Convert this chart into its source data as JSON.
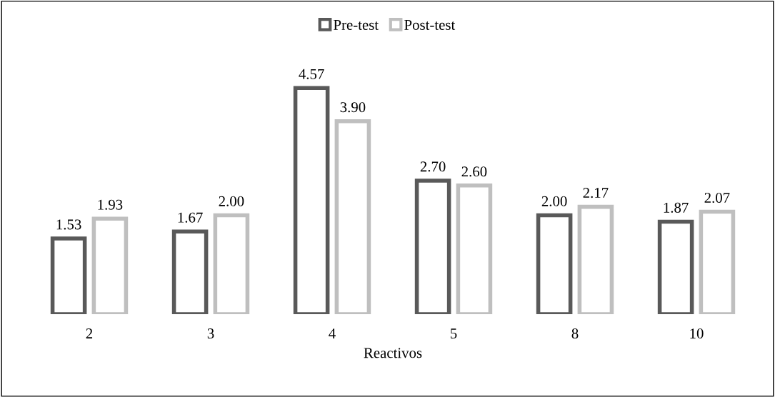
{
  "chart_data": {
    "type": "bar",
    "xlabel": "Reactivos",
    "categories": [
      "2",
      "3",
      "4",
      "5",
      "8",
      "10"
    ],
    "series": [
      {
        "name": "Pre-test",
        "color": "#595959",
        "values": [
          1.53,
          1.67,
          4.57,
          2.7,
          2.0,
          1.87
        ],
        "value_labels": [
          "1.53",
          "1.67",
          "4.57",
          "2.70",
          "2.00",
          "1.87"
        ]
      },
      {
        "name": "Post-test",
        "color": "#bfbfbf",
        "values": [
          1.93,
          2.0,
          3.9,
          2.6,
          2.17,
          2.07
        ],
        "value_labels": [
          "1.93",
          "2.00",
          "3.90",
          "2.60",
          "2.17",
          "2.07"
        ]
      }
    ],
    "legend": "top",
    "grid": false
  }
}
